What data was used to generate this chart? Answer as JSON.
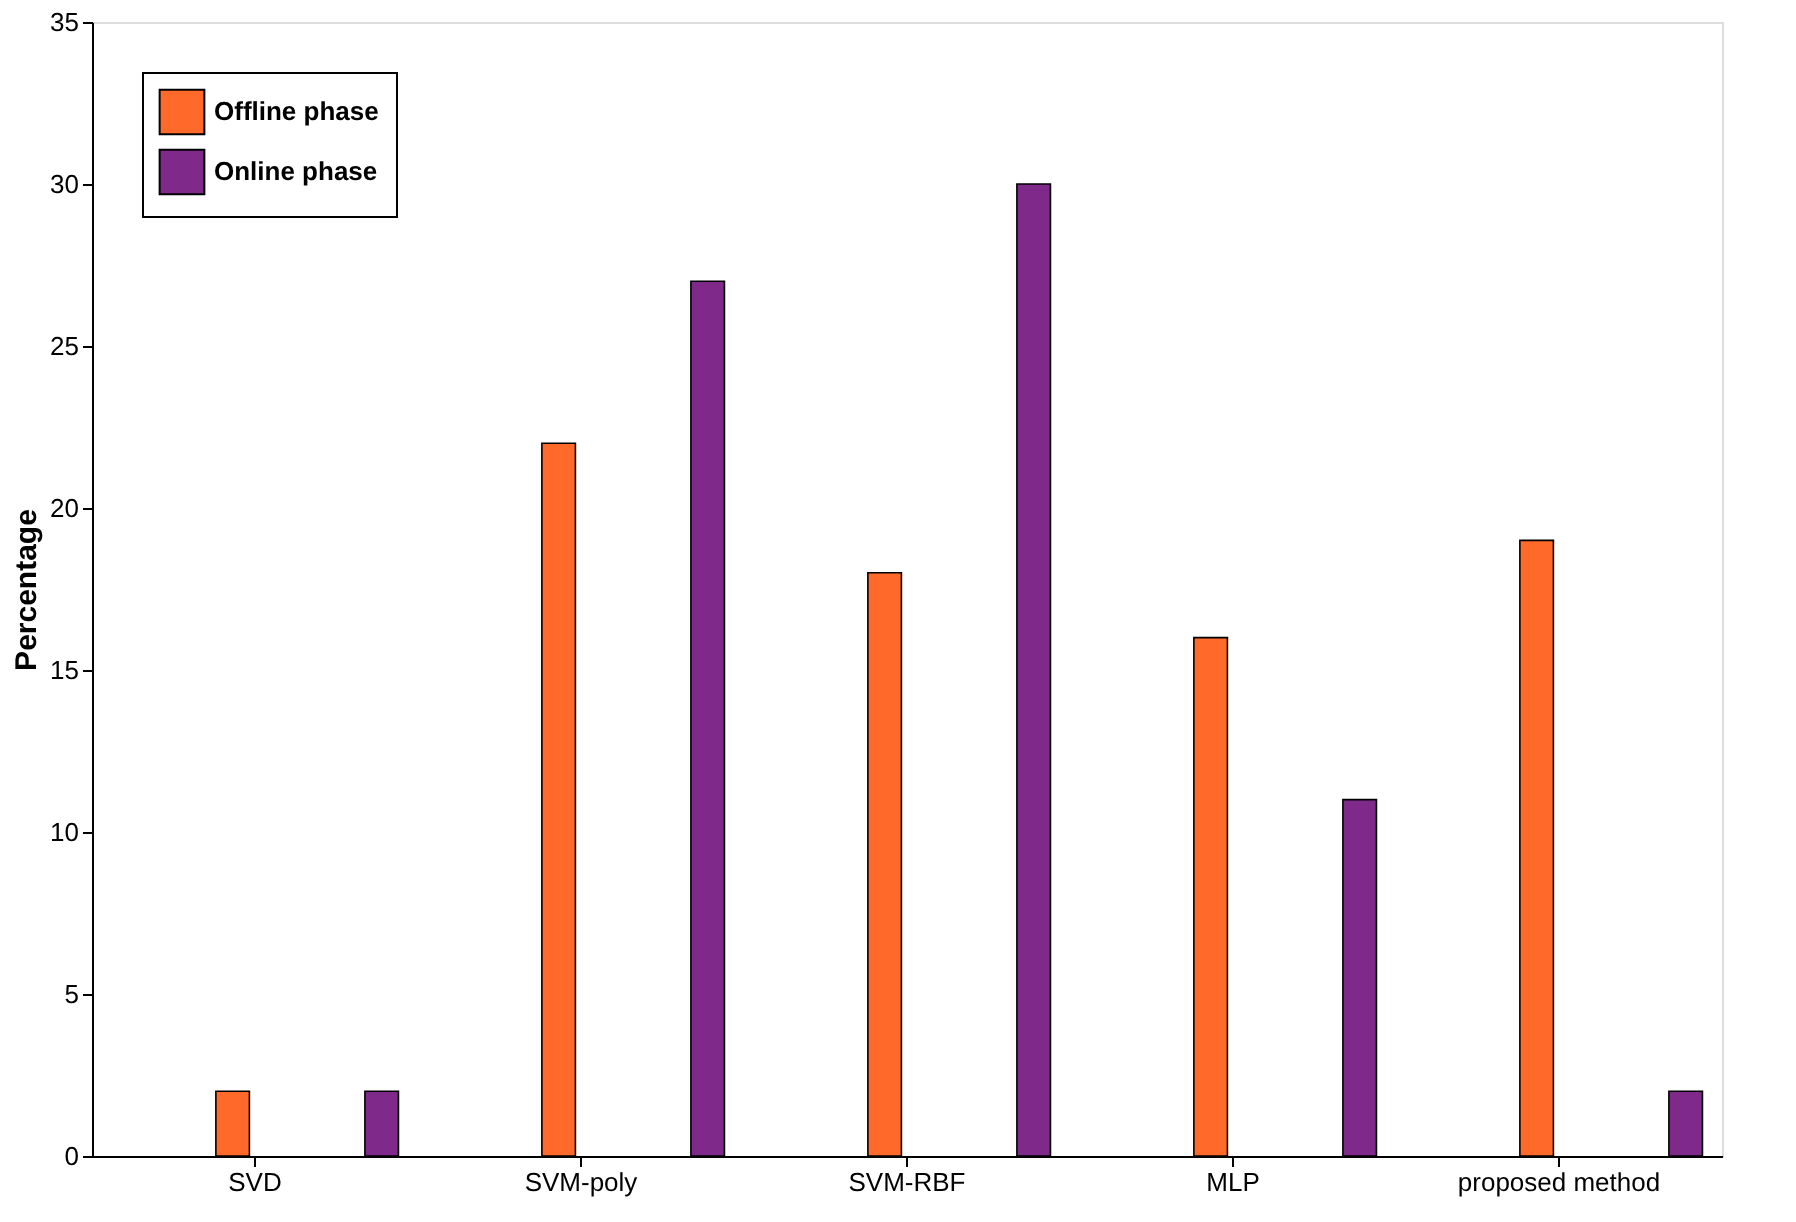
{
  "chart_data": {
    "type": "bar",
    "ylabel": "Percentage",
    "categories": [
      "SVD",
      "SVM-poly",
      "SVM-RBF",
      "MLP",
      "proposed method"
    ],
    "series": [
      {
        "name": "Offline phase",
        "color": "#ff6a2b",
        "values": [
          2,
          22,
          18,
          16,
          19
        ]
      },
      {
        "name": "Online phase",
        "color": "#7f2a8a",
        "values": [
          2,
          27,
          30,
          11,
          2
        ]
      }
    ],
    "ylim": [
      0,
      35
    ],
    "yticks": [
      0,
      5,
      10,
      15,
      20,
      25,
      30,
      35
    ],
    "grid": false,
    "legend": "top left"
  }
}
